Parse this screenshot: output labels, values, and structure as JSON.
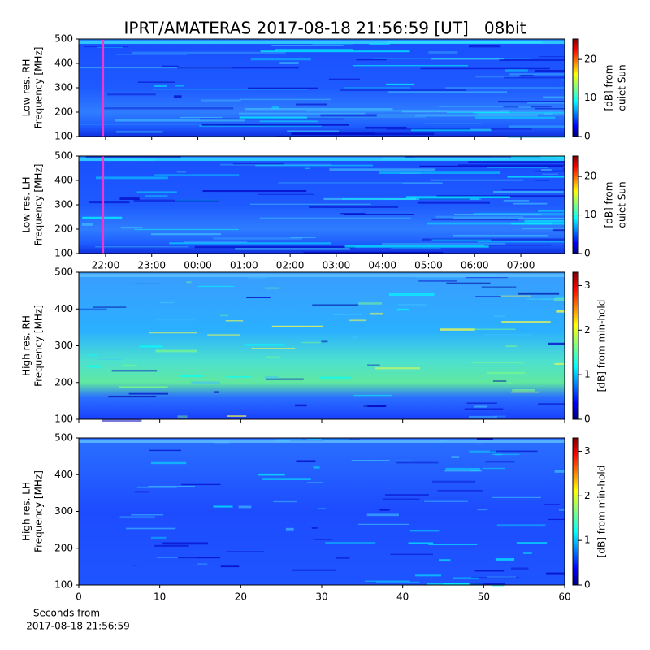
{
  "title": "IPRT/AMATERAS 2017-08-18 21:56:59 [UT]   08bit",
  "chart_data": [
    {
      "type": "heatmap",
      "ylabel": [
        "Low res. RH",
        "Frequency [MHz]"
      ],
      "ylim": [
        100,
        500
      ],
      "yticks": [
        100,
        200,
        300,
        400,
        500
      ],
      "xlim": [
        21.42,
        31.95
      ],
      "xticks": [
        22,
        23,
        24,
        25,
        26,
        27,
        28,
        29,
        30,
        31
      ],
      "show_xtick_labels": false,
      "cursor_x": 21.95,
      "cursor_color": "#ff33cc",
      "colorbar_label": [
        "[dB] from",
        "quiet Sun"
      ],
      "clim": [
        0,
        25.3
      ],
      "cticks": [
        0,
        10,
        20
      ]
    },
    {
      "type": "heatmap",
      "ylabel": [
        "Low res. LH",
        "Frequency [MHz]"
      ],
      "ylim": [
        100,
        500
      ],
      "yticks": [
        100,
        200,
        300,
        400,
        500
      ],
      "xlim": [
        21.42,
        31.95
      ],
      "xticks": [
        {
          "value": 22,
          "label": "22:00"
        },
        {
          "value": 23,
          "label": "23:00"
        },
        {
          "value": 24,
          "label": "00:00"
        },
        {
          "value": 25,
          "label": "01:00"
        },
        {
          "value": 26,
          "label": "02:00"
        },
        {
          "value": 27,
          "label": "03:00"
        },
        {
          "value": 28,
          "label": "04:00"
        },
        {
          "value": 29,
          "label": "05:00"
        },
        {
          "value": 30,
          "label": "06:00"
        },
        {
          "value": 31,
          "label": "07:00"
        }
      ],
      "show_xtick_labels": true,
      "cursor_x": 21.95,
      "cursor_color": "#ff33cc",
      "colorbar_label": [
        "[dB] from",
        "quiet Sun"
      ],
      "clim": [
        0,
        25.3
      ],
      "cticks": [
        0,
        10,
        20
      ]
    },
    {
      "type": "heatmap",
      "ylabel": [
        "High res. RH",
        "Frequency [MHz]"
      ],
      "ylim": [
        100,
        500
      ],
      "yticks": [
        100,
        200,
        300,
        400,
        500
      ],
      "xlim": [
        0,
        60
      ],
      "xticks": [
        0,
        10,
        20,
        30,
        40,
        50,
        60
      ],
      "show_xtick_labels": false,
      "colorbar_label": [
        "[dB] from min-hold"
      ],
      "clim": [
        0,
        3.3
      ],
      "cticks": [
        0,
        1,
        2,
        3
      ]
    },
    {
      "type": "heatmap",
      "ylabel": [
        "High res. LH",
        "Frequency [MHz]"
      ],
      "ylim": [
        100,
        500
      ],
      "yticks": [
        100,
        200,
        300,
        400,
        500
      ],
      "xlim": [
        0,
        60
      ],
      "xticks": [
        0,
        10,
        20,
        30,
        40,
        50,
        60
      ],
      "show_xtick_labels": true,
      "xlabel": [
        "Seconds from",
        "2017-08-18 21:56:59"
      ],
      "colorbar_label": [
        "[dB] from min-hold"
      ],
      "clim": [
        0,
        3.3
      ],
      "cticks": [
        0,
        1,
        2,
        3
      ]
    }
  ]
}
